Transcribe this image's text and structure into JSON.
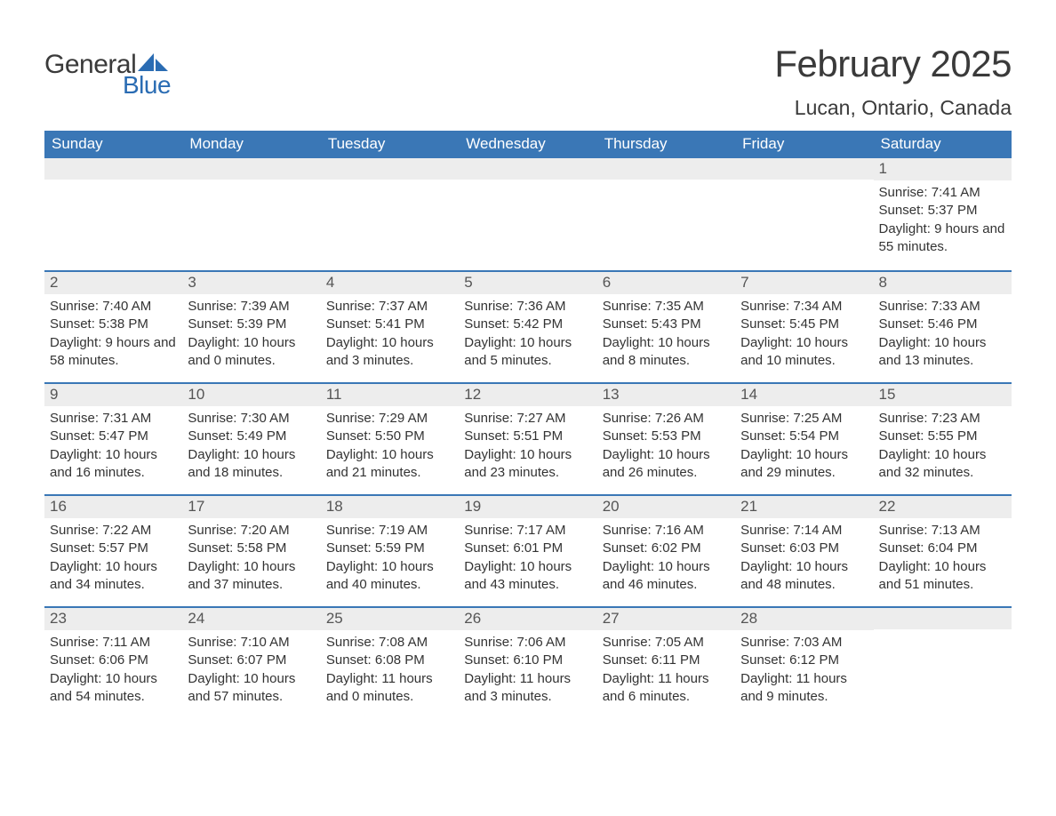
{
  "logo": {
    "text1": "General",
    "text2": "Blue",
    "shape_color": "#2a6cb3",
    "text1_color": "#3a3a3a"
  },
  "title": "February 2025",
  "location": "Lucan, Ontario, Canada",
  "colors": {
    "header_bg": "#3a77b6",
    "header_text": "#ffffff",
    "daynum_bg": "#ededed",
    "border": "#3a77b6",
    "text": "#333333"
  },
  "day_headers": [
    "Sunday",
    "Monday",
    "Tuesday",
    "Wednesday",
    "Thursday",
    "Friday",
    "Saturday"
  ],
  "weeks": [
    [
      null,
      null,
      null,
      null,
      null,
      null,
      {
        "n": "1",
        "sunrise": "7:41 AM",
        "sunset": "5:37 PM",
        "daylight": "9 hours and 55 minutes."
      }
    ],
    [
      {
        "n": "2",
        "sunrise": "7:40 AM",
        "sunset": "5:38 PM",
        "daylight": "9 hours and 58 minutes."
      },
      {
        "n": "3",
        "sunrise": "7:39 AM",
        "sunset": "5:39 PM",
        "daylight": "10 hours and 0 minutes."
      },
      {
        "n": "4",
        "sunrise": "7:37 AM",
        "sunset": "5:41 PM",
        "daylight": "10 hours and 3 minutes."
      },
      {
        "n": "5",
        "sunrise": "7:36 AM",
        "sunset": "5:42 PM",
        "daylight": "10 hours and 5 minutes."
      },
      {
        "n": "6",
        "sunrise": "7:35 AM",
        "sunset": "5:43 PM",
        "daylight": "10 hours and 8 minutes."
      },
      {
        "n": "7",
        "sunrise": "7:34 AM",
        "sunset": "5:45 PM",
        "daylight": "10 hours and 10 minutes."
      },
      {
        "n": "8",
        "sunrise": "7:33 AM",
        "sunset": "5:46 PM",
        "daylight": "10 hours and 13 minutes."
      }
    ],
    [
      {
        "n": "9",
        "sunrise": "7:31 AM",
        "sunset": "5:47 PM",
        "daylight": "10 hours and 16 minutes."
      },
      {
        "n": "10",
        "sunrise": "7:30 AM",
        "sunset": "5:49 PM",
        "daylight": "10 hours and 18 minutes."
      },
      {
        "n": "11",
        "sunrise": "7:29 AM",
        "sunset": "5:50 PM",
        "daylight": "10 hours and 21 minutes."
      },
      {
        "n": "12",
        "sunrise": "7:27 AM",
        "sunset": "5:51 PM",
        "daylight": "10 hours and 23 minutes."
      },
      {
        "n": "13",
        "sunrise": "7:26 AM",
        "sunset": "5:53 PM",
        "daylight": "10 hours and 26 minutes."
      },
      {
        "n": "14",
        "sunrise": "7:25 AM",
        "sunset": "5:54 PM",
        "daylight": "10 hours and 29 minutes."
      },
      {
        "n": "15",
        "sunrise": "7:23 AM",
        "sunset": "5:55 PM",
        "daylight": "10 hours and 32 minutes."
      }
    ],
    [
      {
        "n": "16",
        "sunrise": "7:22 AM",
        "sunset": "5:57 PM",
        "daylight": "10 hours and 34 minutes."
      },
      {
        "n": "17",
        "sunrise": "7:20 AM",
        "sunset": "5:58 PM",
        "daylight": "10 hours and 37 minutes."
      },
      {
        "n": "18",
        "sunrise": "7:19 AM",
        "sunset": "5:59 PM",
        "daylight": "10 hours and 40 minutes."
      },
      {
        "n": "19",
        "sunrise": "7:17 AM",
        "sunset": "6:01 PM",
        "daylight": "10 hours and 43 minutes."
      },
      {
        "n": "20",
        "sunrise": "7:16 AM",
        "sunset": "6:02 PM",
        "daylight": "10 hours and 46 minutes."
      },
      {
        "n": "21",
        "sunrise": "7:14 AM",
        "sunset": "6:03 PM",
        "daylight": "10 hours and 48 minutes."
      },
      {
        "n": "22",
        "sunrise": "7:13 AM",
        "sunset": "6:04 PM",
        "daylight": "10 hours and 51 minutes."
      }
    ],
    [
      {
        "n": "23",
        "sunrise": "7:11 AM",
        "sunset": "6:06 PM",
        "daylight": "10 hours and 54 minutes."
      },
      {
        "n": "24",
        "sunrise": "7:10 AM",
        "sunset": "6:07 PM",
        "daylight": "10 hours and 57 minutes."
      },
      {
        "n": "25",
        "sunrise": "7:08 AM",
        "sunset": "6:08 PM",
        "daylight": "11 hours and 0 minutes."
      },
      {
        "n": "26",
        "sunrise": "7:06 AM",
        "sunset": "6:10 PM",
        "daylight": "11 hours and 3 minutes."
      },
      {
        "n": "27",
        "sunrise": "7:05 AM",
        "sunset": "6:11 PM",
        "daylight": "11 hours and 6 minutes."
      },
      {
        "n": "28",
        "sunrise": "7:03 AM",
        "sunset": "6:12 PM",
        "daylight": "11 hours and 9 minutes."
      },
      null
    ]
  ],
  "labels": {
    "sunrise": "Sunrise: ",
    "sunset": "Sunset: ",
    "daylight": "Daylight: "
  }
}
